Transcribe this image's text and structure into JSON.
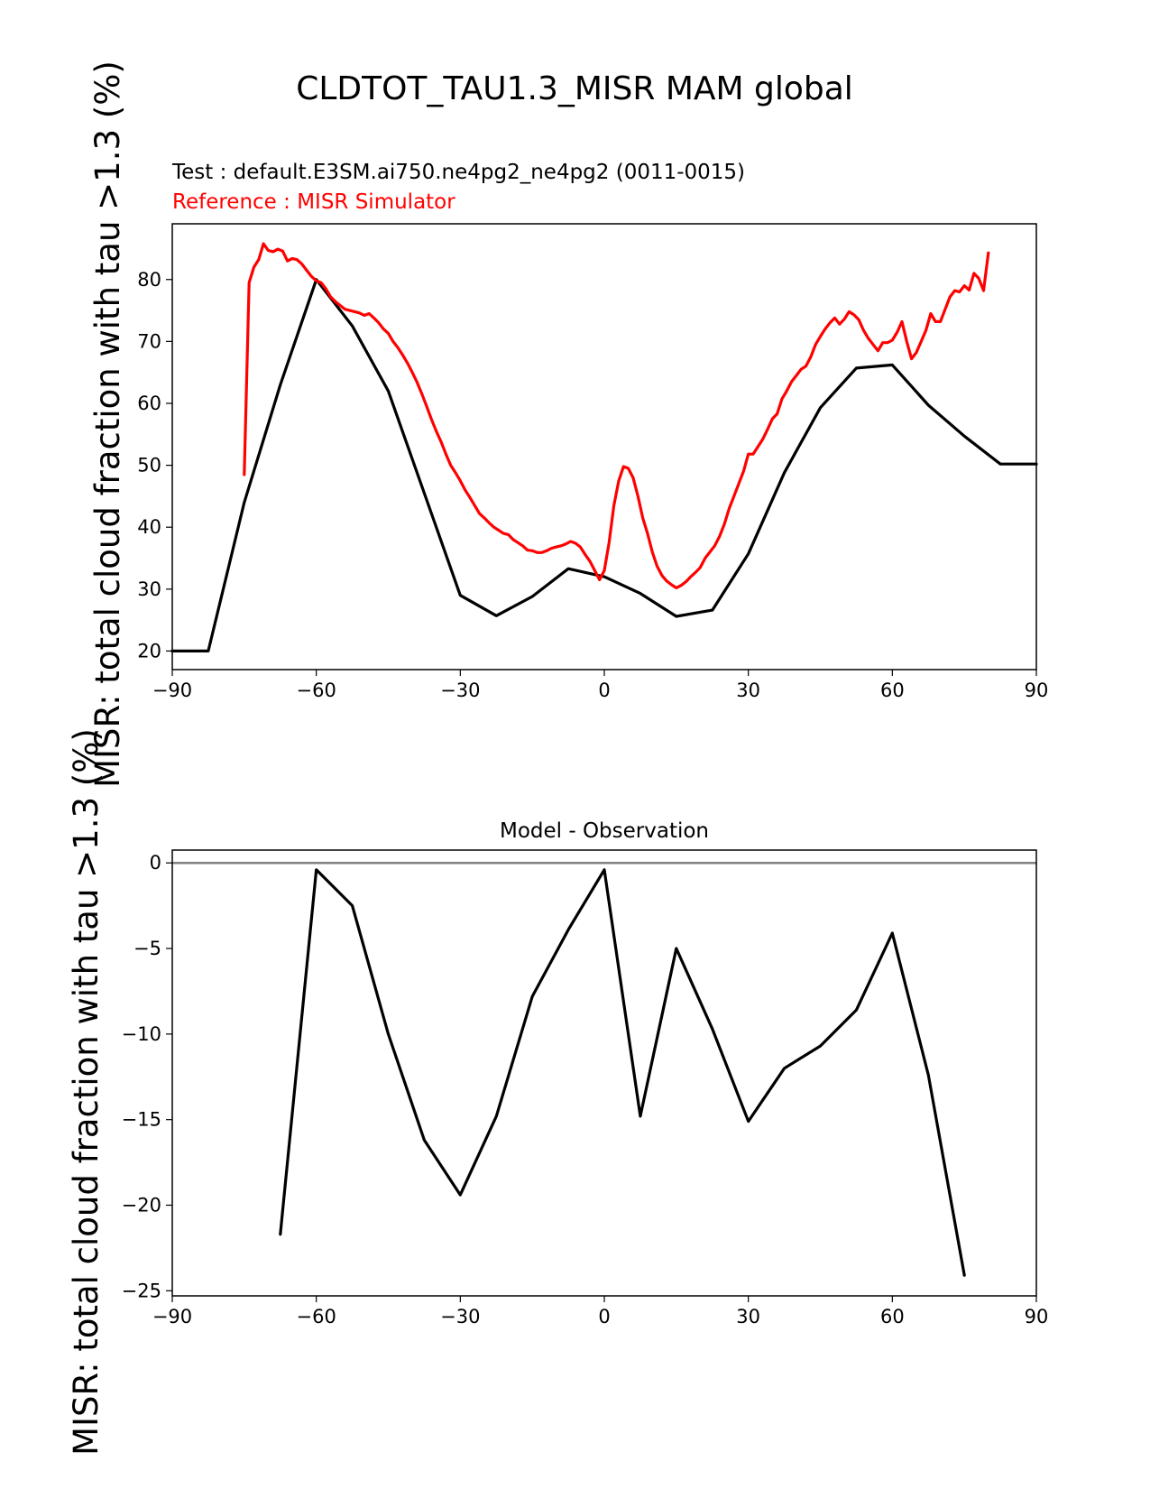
{
  "figure": {
    "title": "CLDTOT_TAU1.3_MISR MAM global"
  },
  "chart_data": [
    {
      "type": "line",
      "test_label": "Test : default.E3SM.ai750.ne4pg2_ne4pg2 (0011-0015)",
      "reference_label": "Reference : MISR Simulator",
      "ylabel": "MISR: total cloud fraction with tau >1.3 (%)",
      "xlim": [
        -90,
        90
      ],
      "ylim": [
        17,
        89
      ],
      "xticks": [
        -90,
        -60,
        -30,
        0,
        30,
        60,
        90
      ],
      "yticks": [
        20,
        30,
        40,
        50,
        60,
        70,
        80
      ],
      "series": [
        {
          "color": "#000000",
          "x": [
            -90,
            -82.5,
            -75,
            -67.5,
            -60,
            -52.5,
            -45,
            -37.5,
            -30,
            -22.5,
            -15,
            -7.5,
            0,
            7.5,
            15,
            22.5,
            30,
            37.5,
            45,
            52.5,
            60,
            67.5,
            75,
            82.5,
            90
          ],
          "y": [
            20,
            20,
            44,
            63,
            80,
            72.5,
            62,
            45.5,
            29,
            25.7,
            28.8,
            33.3,
            32,
            29.3,
            25.6,
            26.6,
            35.7,
            48.8,
            59.3,
            65.7,
            66.2,
            59.7,
            54.7,
            50.2,
            50.2
          ]
        },
        {
          "color": "#ff0000",
          "x": [
            -75,
            -74,
            -73,
            -72,
            -71,
            -70,
            -69,
            -68,
            -67,
            -66,
            -65,
            -64,
            -63,
            -62,
            -61,
            -60,
            -59,
            -58,
            -57,
            -56,
            -55,
            -54,
            -53,
            -52,
            -51,
            -50,
            -49,
            -48,
            -47,
            -46,
            -45,
            -44,
            -43,
            -42,
            -41,
            -40,
            -39,
            -38,
            -37,
            -36,
            -35,
            -34,
            -33,
            -32,
            -31,
            -30,
            -29,
            -28,
            -27,
            -26,
            -25,
            -24,
            -23,
            -22,
            -21,
            -20,
            -19,
            -18,
            -17,
            -16,
            -15,
            -14,
            -13,
            -12,
            -11,
            -10,
            -9,
            -8,
            -7,
            -6,
            -5,
            -4,
            -3,
            -2,
            -1,
            0,
            1,
            2,
            3,
            4,
            5,
            6,
            7,
            8,
            9,
            10,
            11,
            12,
            13,
            14,
            15,
            16,
            17,
            18,
            19,
            20,
            21,
            22,
            23,
            24,
            25,
            26,
            27,
            28,
            29,
            30,
            31,
            32,
            33,
            34,
            35,
            36,
            37,
            38,
            39,
            40,
            41,
            42,
            43,
            44,
            45,
            46,
            47,
            48,
            49,
            50,
            51,
            52,
            53,
            54,
            55,
            56,
            57,
            58,
            59,
            60,
            61,
            62,
            63,
            64,
            65,
            66,
            67,
            68,
            69,
            70,
            71,
            72,
            73,
            74,
            75,
            76,
            77,
            78,
            79,
            80
          ],
          "y": [
            48.5,
            79.5,
            82,
            83.2,
            85.8,
            84.7,
            84.5,
            84.9,
            84.6,
            83,
            83.4,
            83.2,
            82.5,
            81.5,
            80.5,
            79.8,
            79.5,
            78.5,
            77.2,
            76.4,
            75.8,
            75.2,
            75,
            74.8,
            74.6,
            74.2,
            74.5,
            73.8,
            73,
            72,
            71.3,
            70,
            69,
            67.8,
            66.5,
            65,
            63.4,
            61.5,
            59.5,
            57.4,
            55.5,
            53.8,
            51.8,
            50,
            48.8,
            47.5,
            46,
            44.8,
            43.5,
            42.2,
            41.5,
            40.7,
            40,
            39.5,
            39,
            38.8,
            38,
            37.5,
            37,
            36.3,
            36.2,
            35.9,
            35.9,
            36.2,
            36.6,
            36.8,
            37,
            37.3,
            37.7,
            37.4,
            36.8,
            35.6,
            34.5,
            33,
            31.5,
            33,
            37.5,
            43.5,
            47.5,
            49.8,
            49.5,
            48,
            45,
            41.5,
            39,
            36,
            33.7,
            32.2,
            31.3,
            30.7,
            30.2,
            30.6,
            31.2,
            32,
            32.7,
            33.5,
            35,
            36,
            37,
            38.5,
            40.5,
            43,
            45,
            47,
            49,
            51.8,
            51.8,
            53,
            54.2,
            55.8,
            57.5,
            58.3,
            60.7,
            62,
            63.5,
            64.5,
            65.5,
            66,
            67.5,
            69.5,
            70.8,
            72,
            73,
            73.8,
            72.8,
            73.6,
            74.8,
            74.3,
            73.5,
            71.8,
            70.5,
            69.5,
            68.5,
            69.8,
            69.8,
            70.2,
            71.5,
            73.2,
            70,
            67.2,
            68.2,
            70,
            71.8,
            74.5,
            73.2,
            73.2,
            75.2,
            77.2,
            78.2,
            78,
            79,
            78.3,
            81,
            80.2,
            78.2,
            84.3
          ]
        }
      ]
    },
    {
      "type": "line",
      "title": "Model - Observation",
      "ylabel": "MISR: total cloud fraction with tau >1.3 (%)",
      "xlim": [
        -90,
        90
      ],
      "ylim": [
        -25.3,
        0.75
      ],
      "xticks": [
        -90,
        -60,
        -30,
        0,
        30,
        60,
        90
      ],
      "yticks": [
        0,
        -5,
        -10,
        -15,
        -20,
        -25
      ],
      "zero_line_color": "#808080",
      "series": [
        {
          "color": "#000000",
          "x": [
            -67.5,
            -60,
            -52.5,
            -45,
            -37.5,
            -30,
            -22.5,
            -15,
            -7.5,
            0,
            7.5,
            15,
            22.5,
            30,
            37.5,
            45,
            52.5,
            60,
            67.5,
            75
          ],
          "y": [
            -21.7,
            -0.4,
            -2.5,
            -10,
            -16.2,
            -19.4,
            -14.8,
            -7.8,
            -3.9,
            -0.4,
            -14.8,
            -5,
            -9.7,
            -15.1,
            -12,
            -10.7,
            -8.6,
            -4.1,
            -12.4,
            -24.1
          ]
        }
      ]
    }
  ]
}
